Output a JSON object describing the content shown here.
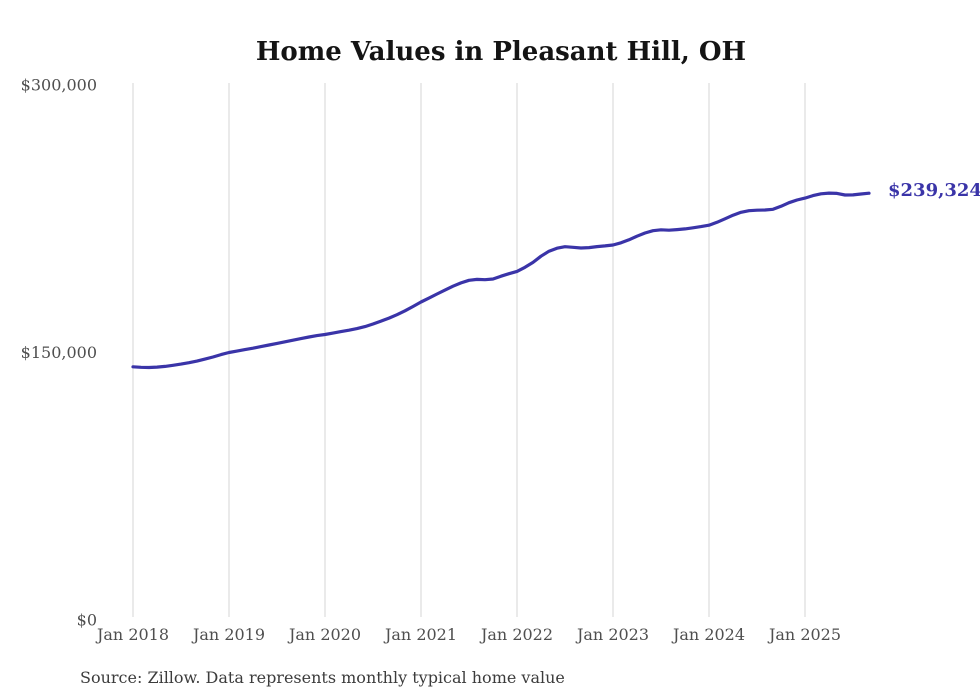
{
  "page": {
    "background_color": "#ffffff",
    "accent_color": "#3a34a8"
  },
  "header": {
    "title": "Home Values in Pleasant Hill, OH"
  },
  "footer": {
    "source_note": "Source: Zillow. Data represents monthly typical home value"
  },
  "chart_data": {
    "type": "line",
    "title": "Home Values in Pleasant Hill, OH",
    "xlabel": "",
    "ylabel": "",
    "ylim": [
      0,
      300000
    ],
    "grid": "vertical-only",
    "legend": "none",
    "x_start_month": "Jan 2018",
    "x_end_month": "Sep 2025",
    "x_tick_labels": [
      "Jan 2018",
      "Jan 2019",
      "Jan 2020",
      "Jan 2021",
      "Jan 2022",
      "Jan 2023",
      "Jan 2024",
      "Jan 2025"
    ],
    "x_tick_month_indices": [
      0,
      12,
      24,
      36,
      48,
      60,
      72,
      84
    ],
    "y_ticks": [
      {
        "label": "$0",
        "value": 0
      },
      {
        "label": "$150,000",
        "value": 150000
      },
      {
        "label": "$300,000",
        "value": 300000
      }
    ],
    "end_label": "$239,324",
    "latest_value": 239324,
    "line_color": "#3a34a8",
    "gridline_color": "#d4d4d4",
    "series": [
      {
        "name": "Monthly typical home value",
        "color": "#3a34a8",
        "values": [
          142000,
          141700,
          141600,
          141800,
          142200,
          142800,
          143500,
          144300,
          145200,
          146300,
          147500,
          148800,
          150000,
          150800,
          151600,
          152400,
          153300,
          154200,
          155100,
          156000,
          156900,
          157800,
          158700,
          159500,
          160100,
          160900,
          161700,
          162500,
          163400,
          164500,
          166000,
          167600,
          169300,
          171200,
          173400,
          175800,
          178300,
          180500,
          182800,
          185000,
          187200,
          189000,
          190500,
          191000,
          190800,
          191200,
          192800,
          194200,
          195500,
          197800,
          200500,
          204000,
          206800,
          208500,
          209300,
          209000,
          208600,
          208800,
          209400,
          209800,
          210300,
          211500,
          213200,
          215200,
          217000,
          218300,
          218800,
          218600,
          218900,
          219300,
          219900,
          220600,
          221400,
          223000,
          225000,
          227000,
          228600,
          229500,
          229800,
          229900,
          230300,
          232000,
          234000,
          235500,
          236600,
          238000,
          239000,
          239400,
          239200,
          238300,
          238400,
          238900,
          239324
        ]
      }
    ]
  }
}
